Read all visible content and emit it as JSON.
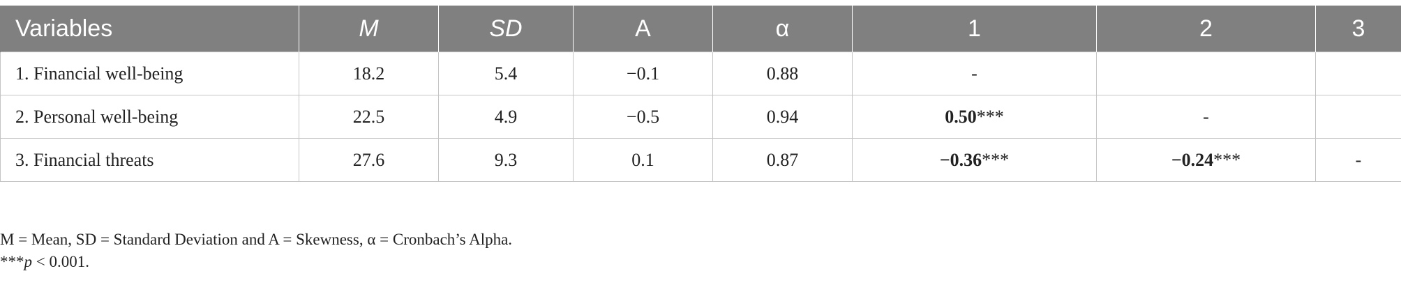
{
  "table": {
    "headers": [
      "Variables",
      "M",
      "SD",
      "A",
      "α",
      "1",
      "2",
      "3"
    ],
    "rows": [
      {
        "variable": "1. Financial well-being",
        "m": "18.2",
        "sd": "5.4",
        "a": "−0.1",
        "alpha": "0.88",
        "c1": "-",
        "c1_stars": "",
        "c2": "",
        "c2_stars": "",
        "c3": ""
      },
      {
        "variable": "2. Personal well-being",
        "m": "22.5",
        "sd": "4.9",
        "a": "−0.5",
        "alpha": "0.94",
        "c1": "0.50",
        "c1_stars": "***",
        "c2": "-",
        "c2_stars": "",
        "c3": ""
      },
      {
        "variable": "3. Financial threats",
        "m": "27.6",
        "sd": "9.3",
        "a": "0.1",
        "alpha": "0.87",
        "c1": "−0.36",
        "c1_stars": "***",
        "c2": "−0.24",
        "c2_stars": "***",
        "c3": "-"
      }
    ]
  },
  "notes": {
    "definitions": "M = Mean, SD = Standard Deviation and A = Skewness, α = Cronbach’s Alpha.",
    "sig_stars": "***",
    "sig_p": "p",
    "sig_value": " < 0.001."
  }
}
